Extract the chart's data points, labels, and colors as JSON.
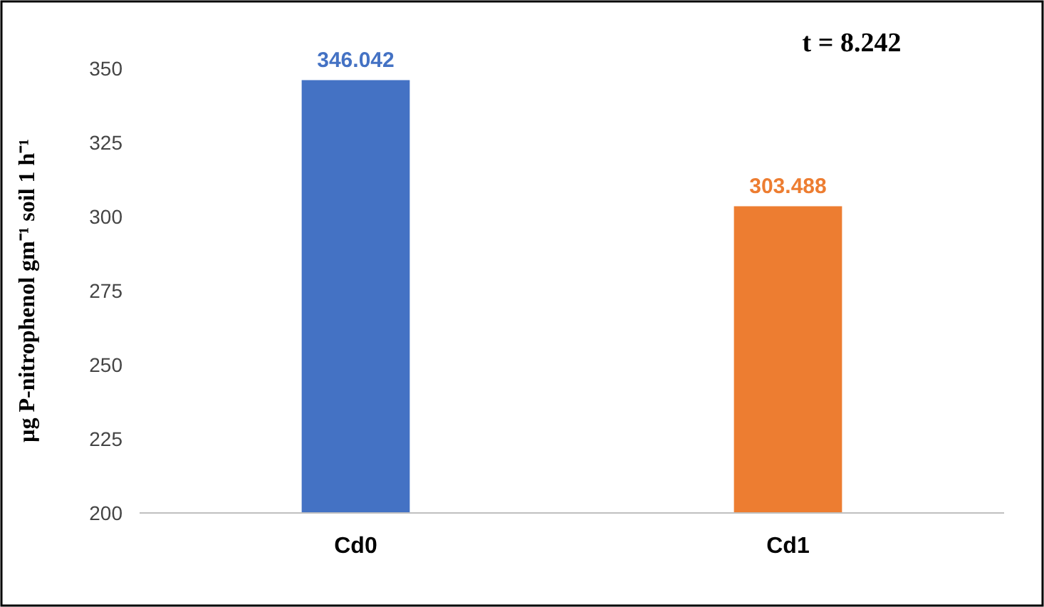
{
  "chart_data": {
    "type": "bar",
    "ylabel": "µg P-nitrophenol gm⁻¹ soil 1 h⁻¹",
    "categories": [
      "Cd0",
      "Cd1"
    ],
    "values": [
      346.042,
      303.488
    ],
    "colors": [
      "#4472c4",
      "#ed7d31"
    ],
    "ylim": [
      200,
      350
    ],
    "yticks": [
      200,
      225,
      250,
      275,
      300,
      325,
      350
    ],
    "data_labels": true,
    "grid": false,
    "annotations": [
      "t = 8.242"
    ]
  }
}
